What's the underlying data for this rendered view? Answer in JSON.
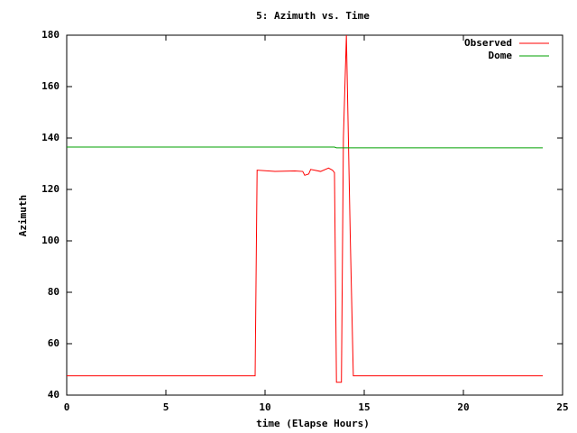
{
  "chart_data": {
    "type": "line",
    "title": "5: Azimuth vs. Time",
    "x_label": "time (Elapse Hours)",
    "y_label": "Azimuth",
    "xlim": [
      0,
      25
    ],
    "xticks": [
      0,
      5,
      10,
      15,
      20,
      25
    ],
    "ylim": [
      40,
      180
    ],
    "yticks": [
      40,
      60,
      80,
      100,
      120,
      140,
      160,
      180
    ],
    "grid": false,
    "legend": "top-right",
    "series": [
      {
        "name": "Observed",
        "color": "#ff0000",
        "x": [
          0,
          9.5,
          9.6,
          10.5,
          11.5,
          11.9,
          12.0,
          12.2,
          12.3,
          12.8,
          13.2,
          13.4,
          13.5,
          13.6,
          13.85,
          13.95,
          14.1,
          14.2,
          14.3,
          14.45,
          24
        ],
        "values": [
          47.5,
          47.5,
          127.5,
          127,
          127.2,
          127,
          125.5,
          126,
          127.8,
          127,
          128.3,
          127.5,
          126.5,
          45,
          45,
          140,
          180,
          140,
          100,
          47.5,
          47.5
        ]
      },
      {
        "name": "Dome",
        "color": "#00a000",
        "x": [
          0,
          13.5,
          13.6,
          24
        ],
        "values": [
          136.5,
          136.5,
          136.2,
          136.2
        ]
      }
    ]
  }
}
